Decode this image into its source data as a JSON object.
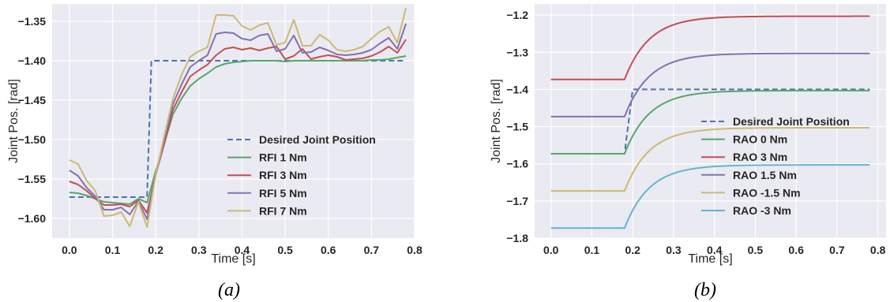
{
  "chart_data": [
    {
      "type": "line",
      "caption": "(a)",
      "xlabel": "Time [s]",
      "ylabel": "Joint Pos. [rad]",
      "xlim": [
        -0.04,
        0.8
      ],
      "ylim": [
        -1.625,
        -1.328
      ],
      "xticks": [
        0.0,
        0.1,
        0.2,
        0.3,
        0.4,
        0.5,
        0.6,
        0.7,
        0.8
      ],
      "xtick_labels": [
        "0.0",
        "0.1",
        "0.2",
        "0.3",
        "0.4",
        "0.5",
        "0.6",
        "0.7",
        "0.8"
      ],
      "yticks": [
        -1.35,
        -1.4,
        -1.45,
        -1.5,
        -1.55,
        -1.6
      ],
      "ytick_labels": [
        "−1.35",
        "−1.40",
        "−1.45",
        "−1.50",
        "−1.55",
        "−1.60"
      ],
      "grid": true,
      "legend_position": "lower-right",
      "x": [
        0.0,
        0.02,
        0.04,
        0.06,
        0.08,
        0.1,
        0.12,
        0.14,
        0.16,
        0.18,
        0.2,
        0.22,
        0.24,
        0.26,
        0.28,
        0.3,
        0.32,
        0.34,
        0.36,
        0.38,
        0.4,
        0.42,
        0.44,
        0.46,
        0.48,
        0.5,
        0.52,
        0.54,
        0.56,
        0.58,
        0.6,
        0.62,
        0.64,
        0.66,
        0.68,
        0.7,
        0.72,
        0.74,
        0.76,
        0.78
      ],
      "series": [
        {
          "name": "Desired Joint Position",
          "color": "#4c72b0",
          "dash": true,
          "x": [
            0.0,
            0.18,
            0.18,
            0.19,
            0.2,
            0.78
          ],
          "values": [
            -1.573,
            -1.573,
            -1.573,
            -1.4,
            -1.4,
            -1.4
          ]
        },
        {
          "name": "RFI 1 Nm",
          "color": "#55a868",
          "values": [
            -1.567,
            -1.568,
            -1.571,
            -1.575,
            -1.579,
            -1.58,
            -1.581,
            -1.582,
            -1.575,
            -1.58,
            -1.54,
            -1.505,
            -1.468,
            -1.448,
            -1.432,
            -1.423,
            -1.416,
            -1.408,
            -1.404,
            -1.402,
            -1.401,
            -1.4,
            -1.4,
            -1.4,
            -1.4,
            -1.401,
            -1.4,
            -1.4,
            -1.4,
            -1.4,
            -1.4,
            -1.4,
            -1.4,
            -1.4,
            -1.4,
            -1.399,
            -1.399,
            -1.398,
            -1.396,
            -1.394
          ]
        },
        {
          "name": "RFI 3 Nm",
          "color": "#c44e52",
          "values": [
            -1.553,
            -1.557,
            -1.565,
            -1.575,
            -1.583,
            -1.583,
            -1.582,
            -1.585,
            -1.577,
            -1.593,
            -1.545,
            -1.505,
            -1.462,
            -1.44,
            -1.42,
            -1.412,
            -1.405,
            -1.393,
            -1.385,
            -1.383,
            -1.386,
            -1.384,
            -1.387,
            -1.384,
            -1.382,
            -1.398,
            -1.394,
            -1.385,
            -1.398,
            -1.395,
            -1.393,
            -1.395,
            -1.399,
            -1.398,
            -1.397,
            -1.394,
            -1.389,
            -1.382,
            -1.39,
            -1.373
          ]
        },
        {
          "name": "RFI 5 Nm",
          "color": "#8172b2",
          "values": [
            -1.539,
            -1.546,
            -1.561,
            -1.572,
            -1.589,
            -1.589,
            -1.586,
            -1.595,
            -1.578,
            -1.601,
            -1.545,
            -1.5,
            -1.455,
            -1.43,
            -1.408,
            -1.4,
            -1.393,
            -1.366,
            -1.364,
            -1.365,
            -1.372,
            -1.374,
            -1.368,
            -1.366,
            -1.388,
            -1.385,
            -1.368,
            -1.39,
            -1.389,
            -1.383,
            -1.387,
            -1.392,
            -1.393,
            -1.392,
            -1.39,
            -1.386,
            -1.378,
            -1.371,
            -1.385,
            -1.353
          ]
        },
        {
          "name": "RFI 7 Nm",
          "color": "#ccb974",
          "values": [
            -1.526,
            -1.531,
            -1.552,
            -1.565,
            -1.597,
            -1.596,
            -1.592,
            -1.61,
            -1.579,
            -1.611,
            -1.545,
            -1.495,
            -1.448,
            -1.418,
            -1.395,
            -1.388,
            -1.383,
            -1.342,
            -1.342,
            -1.343,
            -1.356,
            -1.361,
            -1.355,
            -1.352,
            -1.38,
            -1.377,
            -1.348,
            -1.381,
            -1.381,
            -1.367,
            -1.374,
            -1.386,
            -1.388,
            -1.386,
            -1.382,
            -1.372,
            -1.363,
            -1.357,
            -1.377,
            -1.333
          ]
        }
      ]
    },
    {
      "type": "line",
      "caption": "(b)",
      "xlabel": "Time [s]",
      "ylabel": "Joint Pos. [rad]",
      "xlim": [
        -0.04,
        0.82
      ],
      "ylim": [
        -1.8,
        -1.17
      ],
      "xticks": [
        0.0,
        0.1,
        0.2,
        0.3,
        0.4,
        0.5,
        0.6,
        0.7,
        0.8
      ],
      "xtick_labels": [
        "0.0",
        "0.1",
        "0.2",
        "0.3",
        "0.4",
        "0.5",
        "0.6",
        "0.7",
        "0.8"
      ],
      "yticks": [
        -1.2,
        -1.3,
        -1.4,
        -1.5,
        -1.6,
        -1.7,
        -1.8
      ],
      "ytick_labels": [
        "−1.2",
        "−1.3",
        "−1.4",
        "−1.5",
        "−1.6",
        "−1.7",
        "−1.8"
      ],
      "grid": true,
      "legend_position": "lower-right",
      "series": [
        {
          "name": "Desired Joint Position",
          "color": "#4c72b0",
          "dash": true,
          "kind": "step",
          "start": -1.573,
          "end": -1.4,
          "step_from": 0.18,
          "step_to": 0.2,
          "x_end": 0.78
        },
        {
          "name": "RAO 0 Nm",
          "color": "#55a868",
          "kind": "exp",
          "start": -1.573,
          "end": -1.403,
          "t0": 0.18,
          "tau": 0.06,
          "x_end": 0.78
        },
        {
          "name": "RAO 3 Nm",
          "color": "#c44e52",
          "kind": "exp",
          "start": -1.373,
          "end": -1.203,
          "t0": 0.18,
          "tau": 0.06,
          "x_end": 0.78
        },
        {
          "name": "RAO 1.5 Nm",
          "color": "#8172b2",
          "kind": "exp",
          "start": -1.473,
          "end": -1.303,
          "t0": 0.18,
          "tau": 0.06,
          "x_end": 0.78
        },
        {
          "name": "RAO -1.5 Nm",
          "color": "#ccb974",
          "kind": "exp",
          "start": -1.673,
          "end": -1.503,
          "t0": 0.18,
          "tau": 0.06,
          "x_end": 0.78
        },
        {
          "name": "RAO -3 Nm",
          "color": "#64b5cd",
          "kind": "exp",
          "start": -1.773,
          "end": -1.603,
          "t0": 0.18,
          "tau": 0.06,
          "x_end": 0.78
        }
      ]
    }
  ]
}
